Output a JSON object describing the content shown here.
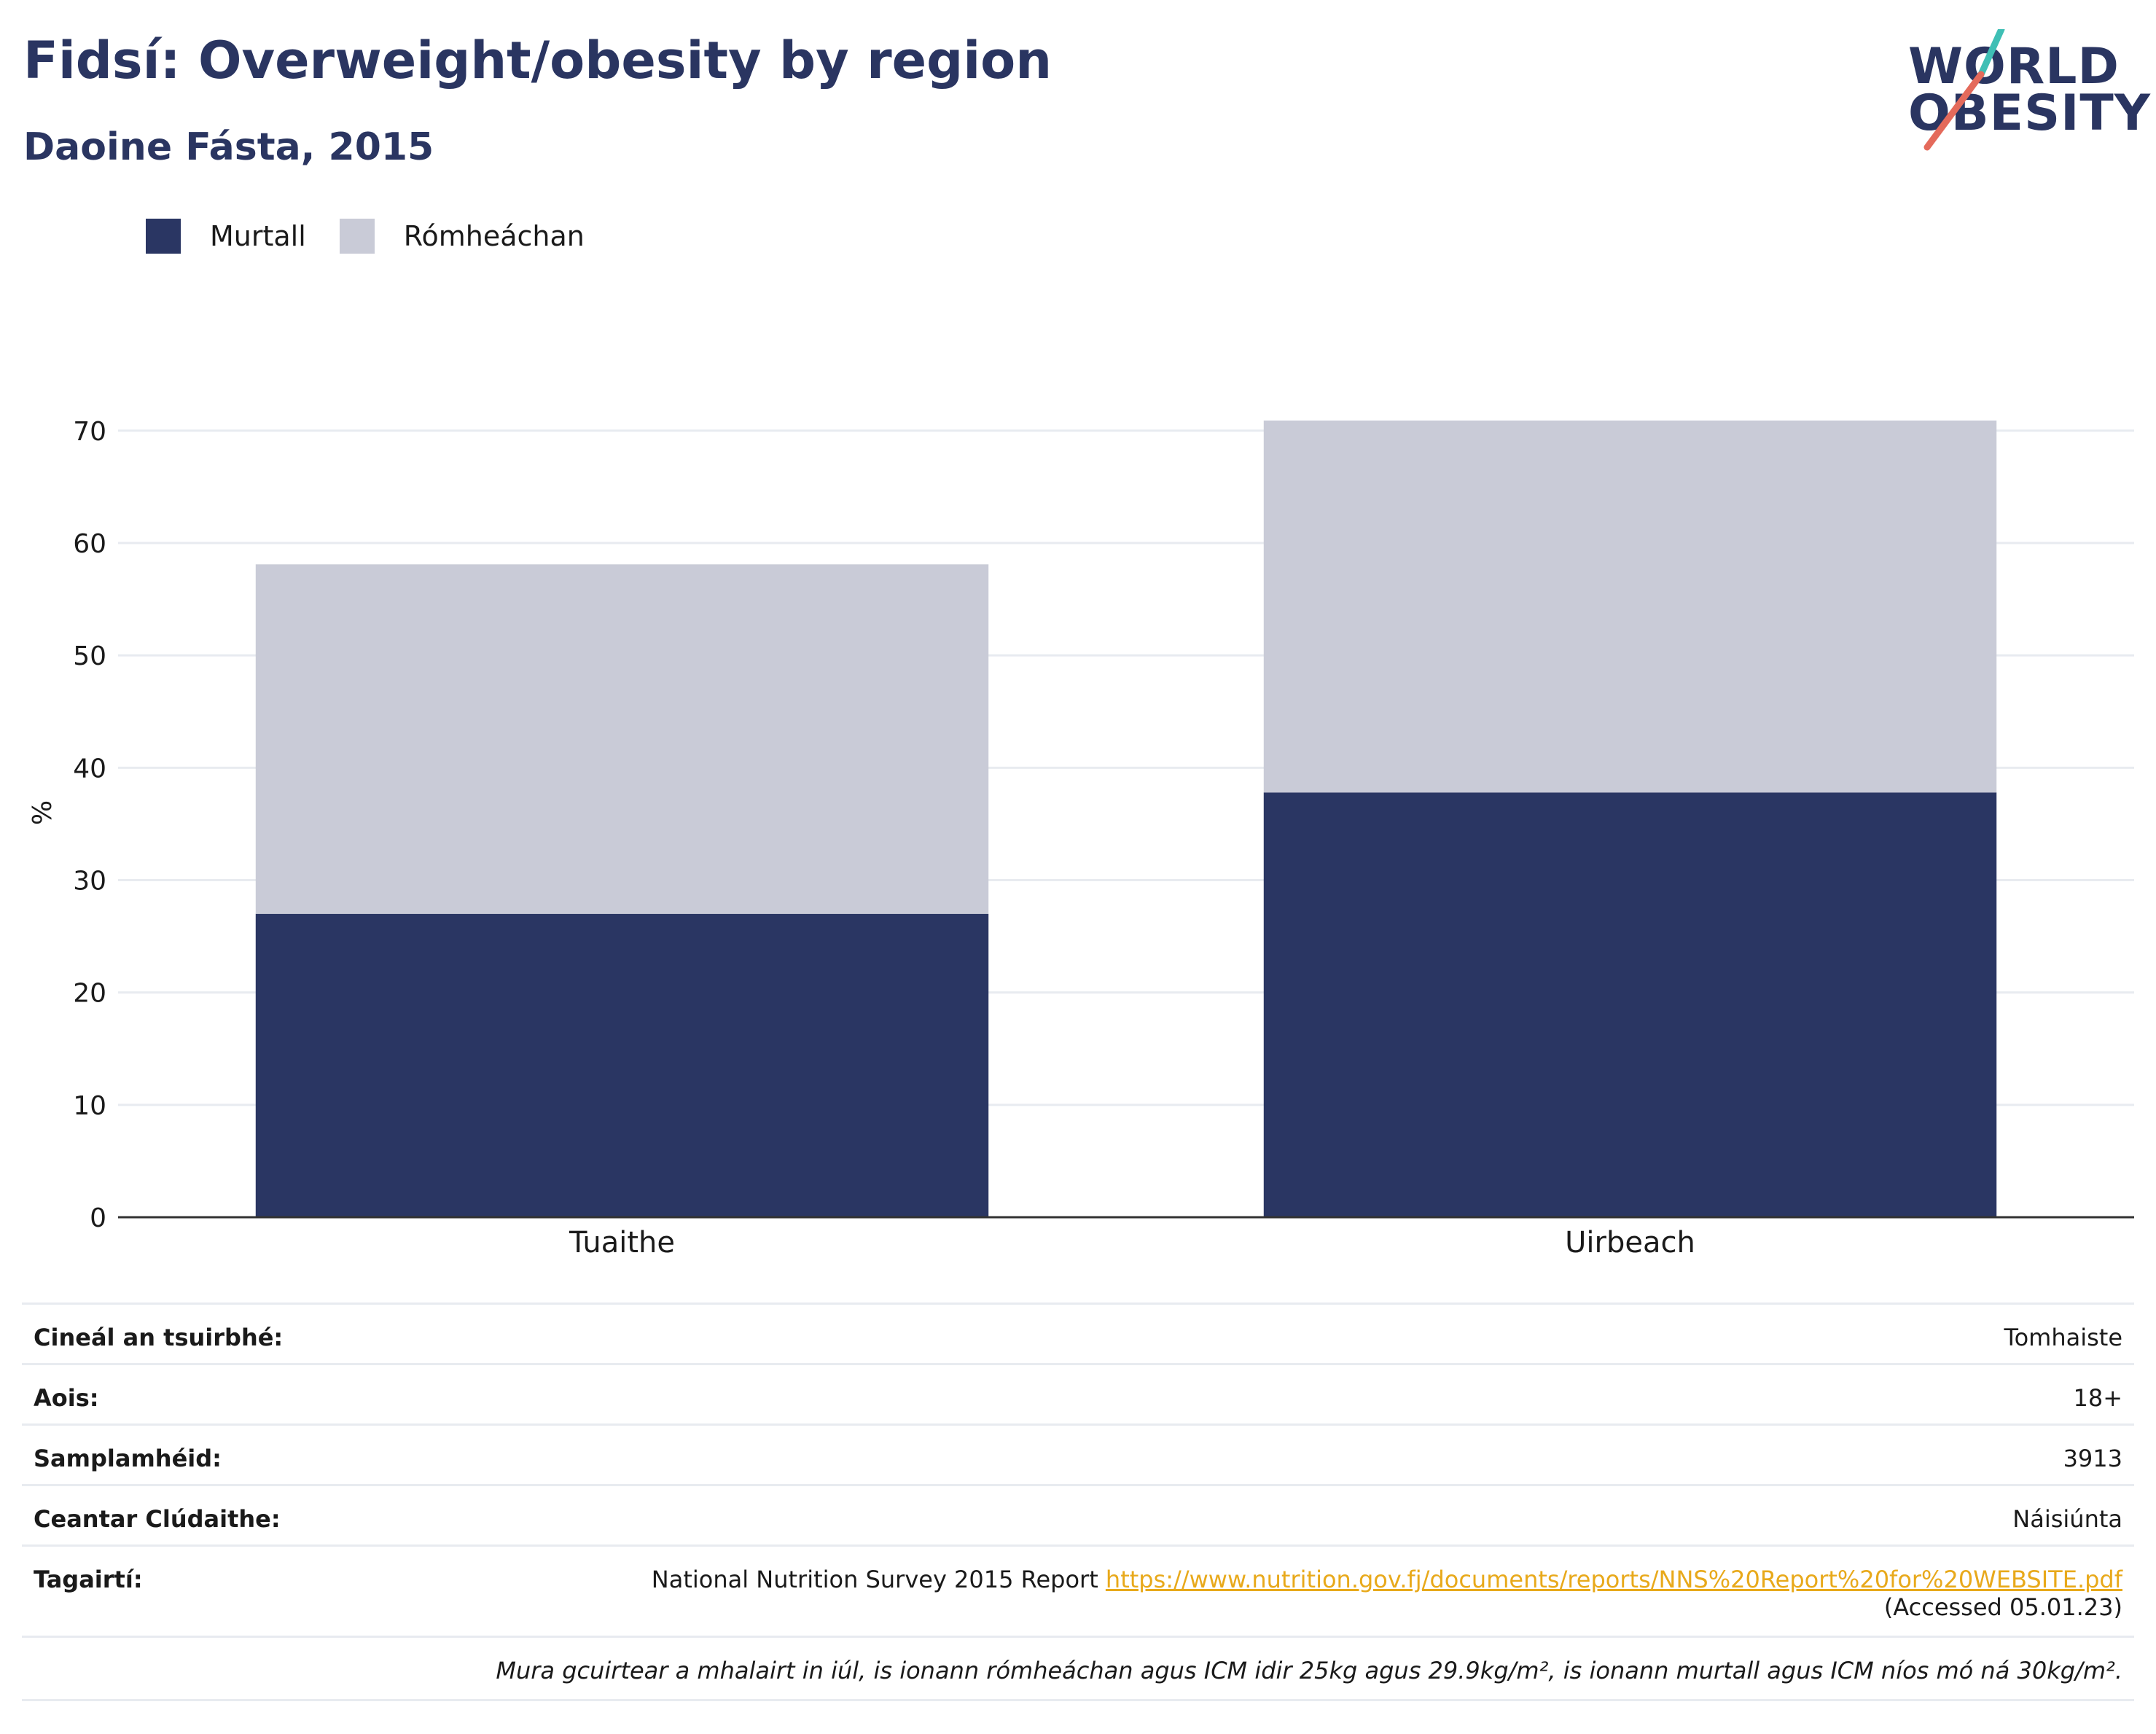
{
  "header": {
    "title": "Fidsí: Overweight/obesity by region",
    "subtitle": "Daoine Fásta, 2015"
  },
  "logo": {
    "line1": "WORLD",
    "line2": "OBESITY"
  },
  "legend": [
    {
      "label": "Murtall",
      "color": "#2a3663"
    },
    {
      "label": "Rómheáchan",
      "color": "#c9cbd7"
    }
  ],
  "chart_data": {
    "type": "bar",
    "stacked": true,
    "categories": [
      "Tuaithe",
      "Uirbeach"
    ],
    "series": [
      {
        "name": "Murtall",
        "color": "#2a3663",
        "values": [
          27.0,
          37.8
        ]
      },
      {
        "name": "Rómheáchan",
        "color": "#c9cbd7",
        "values": [
          31.1,
          33.1
        ]
      }
    ],
    "ylabel": "%",
    "ylim": [
      0,
      70
    ],
    "yticks": [
      0,
      10,
      20,
      30,
      40,
      50,
      60,
      70
    ],
    "grid": true,
    "legend_position": "top-left"
  },
  "info": {
    "survey_type_label": "Cineál an tsuirbhé:",
    "survey_type_value": "Tomhaiste",
    "age_label": "Aois:",
    "age_value": "18+",
    "sample_label": "Samplamhéid:",
    "sample_value": "3913",
    "area_label": "Ceantar Clúdaithe:",
    "area_value": "Náisiúnta",
    "refs_label": "Tagairtí:",
    "refs_text": "National Nutrition Survey 2015 Report",
    "refs_link": "https://www.nutrition.gov.fj/documents/reports/NNS%20Report%20for%20WEBSITE.pdf",
    "refs_accessed": "(Accessed 05.01.23)",
    "note": "Mura gcuirtear a mhalairt in iúl, is ionann rómheáchan agus ICM idir 25kg agus 29.9kg/m², is ionann murtall agus ICM níos mó ná 30kg/m²."
  }
}
